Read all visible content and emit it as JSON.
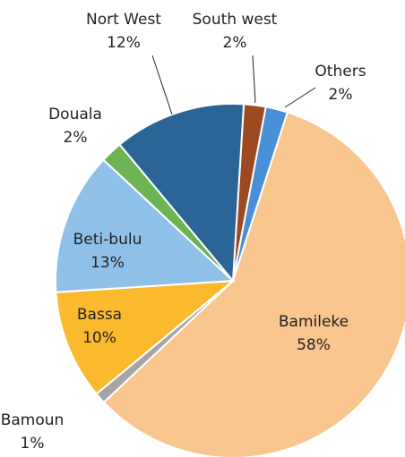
{
  "chart_data": {
    "type": "pie",
    "categories": [
      "South west",
      "Others",
      "Bamileke",
      "Bamoun",
      "Bassa",
      "Beti-bulu",
      "Douala",
      "Nort West"
    ],
    "values": [
      2,
      2,
      58,
      1,
      10,
      13,
      2,
      12
    ],
    "value_labels": [
      "2%",
      "2%",
      "58%",
      "1%",
      "10%",
      "13%",
      "2%",
      "12%"
    ],
    "colors": [
      "#9c4a22",
      "#4a90d6",
      "#f8c68e",
      "#a5a5a5",
      "#fbb92d",
      "#8fc1e8",
      "#6cb353",
      "#2b6597"
    ]
  }
}
